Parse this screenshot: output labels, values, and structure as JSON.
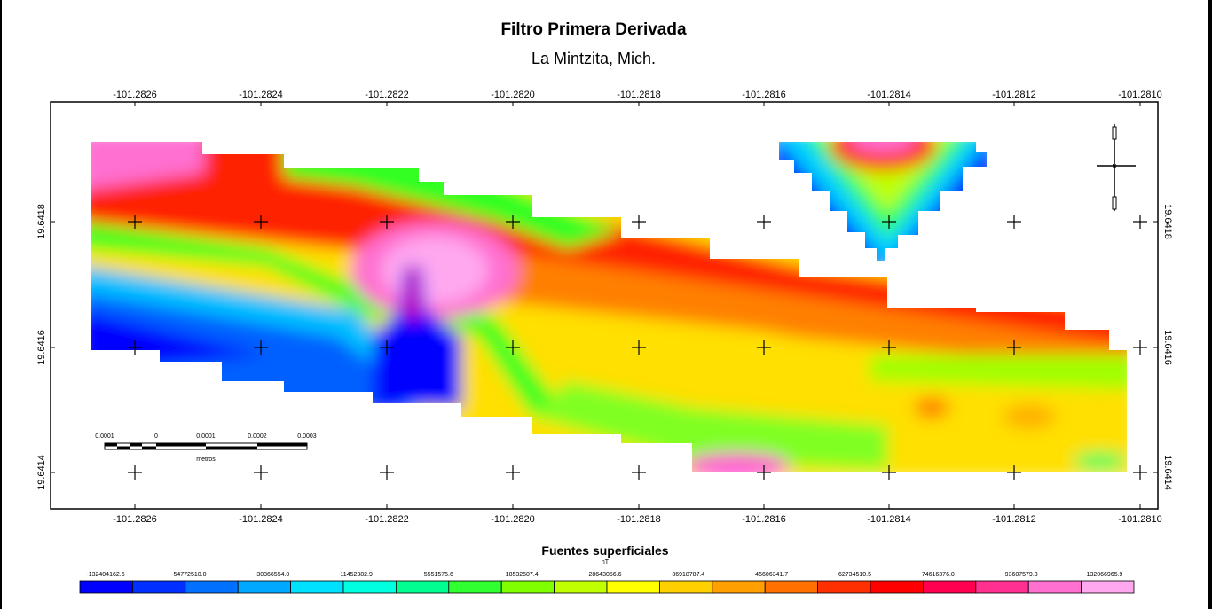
{
  "map": {
    "title": "Filtro Primera Derivada",
    "subtitle": "La Mintzita, Mich.",
    "longitude_ticks": [
      "-101.2826",
      "-101.2824",
      "-101.2822",
      "-101.2820",
      "-101.2818",
      "-101.2816",
      "-101.2814",
      "-101.2812",
      "-101.2810"
    ],
    "latitude_ticks": [
      "19.6418",
      "19.6416",
      "19.6414"
    ],
    "north_arrow_label": "N",
    "scale_bar": {
      "labels": [
        "0.0001",
        "0",
        "0.0001",
        "0.0002",
        "0.0003"
      ],
      "unit": "metros"
    }
  },
  "legend": {
    "title": "Fuentes superficiales",
    "unit": "nT",
    "values": [
      "-132404162.6",
      "-54772510.0",
      "-30366554.0",
      "-11452382.9",
      "5551575.6",
      "18532507.4",
      "28643056.6",
      "36918787.4",
      "45606341.7",
      "62734510.5",
      "74616376.0",
      "93607579.3",
      "132066965.9"
    ],
    "colors": [
      "#0000ff",
      "#0030ff",
      "#0070ff",
      "#00a8ff",
      "#00e0ff",
      "#00ffe0",
      "#00ff90",
      "#30ff30",
      "#80ff00",
      "#c0ff00",
      "#ffff00",
      "#ffd000",
      "#ffa000",
      "#ff7000",
      "#ff3000",
      "#ff0000",
      "#ff0050",
      "#ff3090",
      "#ff70d0",
      "#ffa8f0"
    ]
  }
}
